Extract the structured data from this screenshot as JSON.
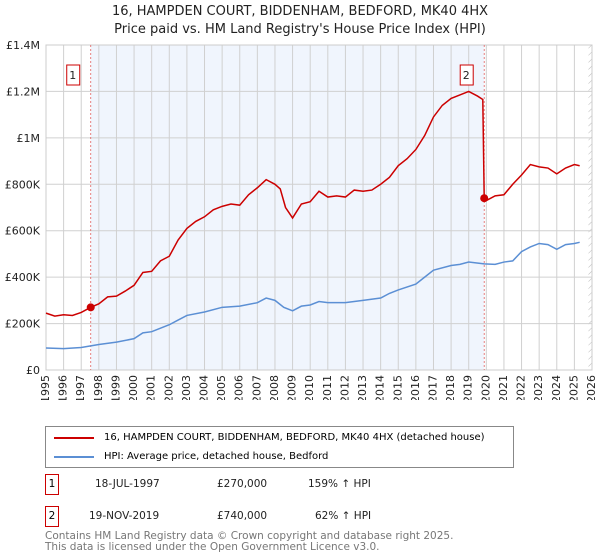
{
  "chart_data": {
    "type": "line",
    "title": "16, HAMPDEN COURT, BIDDENHAM, BEDFORD, MK40 4HX",
    "subtitle": "Price paid vs. HM Land Registry's House Price Index (HPI)",
    "xlim": [
      1995,
      2026
    ],
    "ylim": [
      0,
      1400000
    ],
    "x_ticks": [
      "1995",
      "1996",
      "1997",
      "1998",
      "1999",
      "2000",
      "2001",
      "2002",
      "2003",
      "2004",
      "2005",
      "2006",
      "2007",
      "2008",
      "2009",
      "2010",
      "2011",
      "2012",
      "2013",
      "2014",
      "2015",
      "2016",
      "2017",
      "2018",
      "2019",
      "2020",
      "2021",
      "2022",
      "2023",
      "2024",
      "2025",
      "2026"
    ],
    "y_ticks": [
      {
        "v": 0,
        "l": "£0"
      },
      {
        "v": 200000,
        "l": "£200K"
      },
      {
        "v": 400000,
        "l": "£400K"
      },
      {
        "v": 600000,
        "l": "£600K"
      },
      {
        "v": 800000,
        "l": "£800K"
      },
      {
        "v": 1000000,
        "l": "£1M"
      },
      {
        "v": 1200000,
        "l": "£1.2M"
      },
      {
        "v": 1400000,
        "l": "£1.4M"
      }
    ],
    "grid": true,
    "shaded_range": [
      1997.54,
      2019.88
    ],
    "hatched_from": 2025.8,
    "series": [
      {
        "name": "16, HAMPDEN COURT, BIDDENHAM, BEDFORD, MK40 4HX (detached house)",
        "color": "#cc0000",
        "x": [
          1995,
          1995.5,
          1996,
          1996.5,
          1997,
          1997.54,
          1998,
          1998.5,
          1999,
          1999.5,
          2000,
          2000.5,
          2001,
          2001.5,
          2002,
          2002.5,
          2003,
          2003.5,
          2004,
          2004.5,
          2005,
          2005.5,
          2006,
          2006.5,
          2007,
          2007.5,
          2008,
          2008.3,
          2008.6,
          2009,
          2009.5,
          2010,
          2010.5,
          2011,
          2011.5,
          2012,
          2012.5,
          2013,
          2013.5,
          2014,
          2014.5,
          2015,
          2015.5,
          2016,
          2016.5,
          2017,
          2017.5,
          2018,
          2018.5,
          2019,
          2019.5,
          2019.8,
          2019.88,
          2020,
          2020.5,
          2021,
          2021.5,
          2022,
          2022.5,
          2023,
          2023.5,
          2024,
          2024.5,
          2025,
          2025.3
        ],
        "y": [
          245000,
          232000,
          238000,
          235000,
          248000,
          270000,
          285000,
          315000,
          318000,
          340000,
          365000,
          420000,
          425000,
          470000,
          490000,
          560000,
          610000,
          640000,
          660000,
          690000,
          705000,
          715000,
          710000,
          755000,
          785000,
          820000,
          800000,
          780000,
          700000,
          655000,
          715000,
          725000,
          770000,
          745000,
          750000,
          745000,
          775000,
          770000,
          775000,
          800000,
          830000,
          880000,
          910000,
          950000,
          1010000,
          1090000,
          1140000,
          1170000,
          1185000,
          1200000,
          1180000,
          1165000,
          740000,
          730000,
          750000,
          755000,
          800000,
          840000,
          885000,
          875000,
          870000,
          845000,
          870000,
          885000,
          880000
        ]
      },
      {
        "name": "HPI: Average price, detached house, Bedford",
        "color": "#5b8fd4",
        "x": [
          1995,
          1996,
          1997,
          1997.54,
          1998,
          1999,
          2000,
          2000.5,
          2001,
          2001.5,
          2002,
          2002.5,
          2003,
          2004,
          2005,
          2006,
          2007,
          2007.5,
          2008,
          2008.5,
          2009,
          2009.5,
          2010,
          2010.5,
          2011,
          2012,
          2013,
          2014,
          2014.5,
          2015,
          2016,
          2016.5,
          2017,
          2018,
          2018.5,
          2019,
          2019.88,
          2020.5,
          2021,
          2021.5,
          2022,
          2022.5,
          2023,
          2023.5,
          2024,
          2024.5,
          2025,
          2025.3
        ],
        "y": [
          95000,
          92000,
          97000,
          104000,
          110000,
          120000,
          135000,
          160000,
          165000,
          180000,
          195000,
          215000,
          235000,
          250000,
          270000,
          275000,
          290000,
          310000,
          300000,
          270000,
          255000,
          275000,
          280000,
          295000,
          290000,
          290000,
          300000,
          310000,
          330000,
          345000,
          370000,
          400000,
          430000,
          450000,
          455000,
          465000,
          457000,
          455000,
          465000,
          470000,
          510000,
          530000,
          545000,
          540000,
          520000,
          540000,
          545000,
          550000
        ]
      }
    ],
    "sales": [
      {
        "id": "1",
        "x": 1997.54,
        "y": 270000,
        "date": "18-JUL-1997",
        "price": "£270,000",
        "hpi": "159% ↑ HPI"
      },
      {
        "id": "2",
        "x": 2019.88,
        "y": 740000,
        "date": "19-NOV-2019",
        "price": "£740,000",
        "hpi": "62% ↑ HPI"
      }
    ]
  },
  "footer": [
    "Contains HM Land Registry data © Crown copyright and database right 2025.",
    "This data is licensed under the Open Government Licence v3.0."
  ]
}
